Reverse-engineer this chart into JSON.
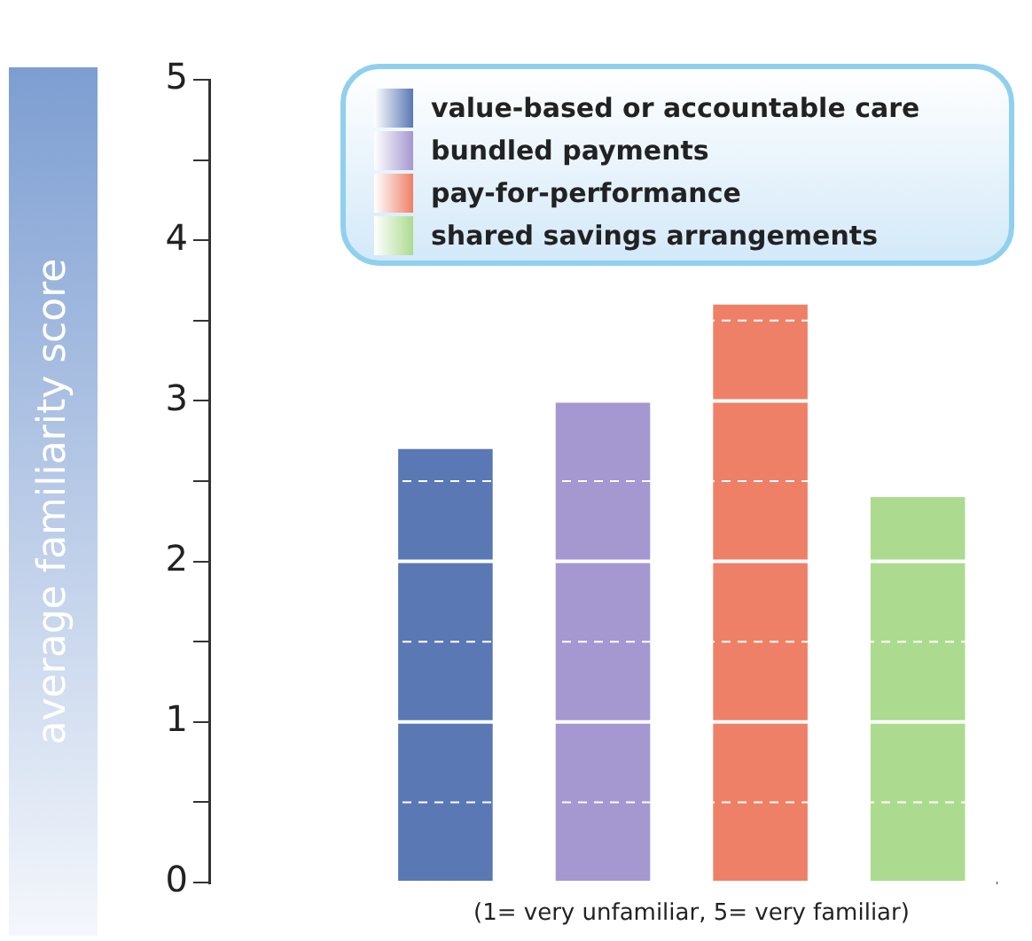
{
  "chart_data": {
    "type": "bar",
    "ylabel": "average familiarity score",
    "categories": [
      null,
      null,
      null,
      null,
      null
    ],
    "series": [
      {
        "name": "value-based or accountable care",
        "color": "#5a78b4",
        "values": [
          null,
          2.7,
          null,
          null,
          null
        ]
      },
      {
        "name": "bundled payments",
        "color": "#a597d0",
        "values": [
          null,
          null,
          3.0,
          null,
          null
        ]
      },
      {
        "name": "pay-for-performance",
        "color": "#ef8068",
        "values": [
          null,
          null,
          null,
          3.6,
          null
        ]
      },
      {
        "name": "shared savings arrangements",
        "color": "#acdb90",
        "values": [
          null,
          null,
          null,
          null,
          2.4
        ]
      }
    ],
    "ylim": [
      0,
      5
    ],
    "yticks": [
      0,
      {
        "value": 0.5,
        "label": null
      },
      1,
      {
        "value": 1.5,
        "label": null
      },
      2,
      {
        "value": 2.5,
        "label": null
      },
      3,
      {
        "value": 3.5,
        "label": null
      },
      4,
      {
        "value": 4.5,
        "label": null
      },
      5
    ],
    "grid": "y",
    "legend": "top right",
    "annotations": [
      "(1= very unfamiliar, 5= very familiar)"
    ]
  }
}
